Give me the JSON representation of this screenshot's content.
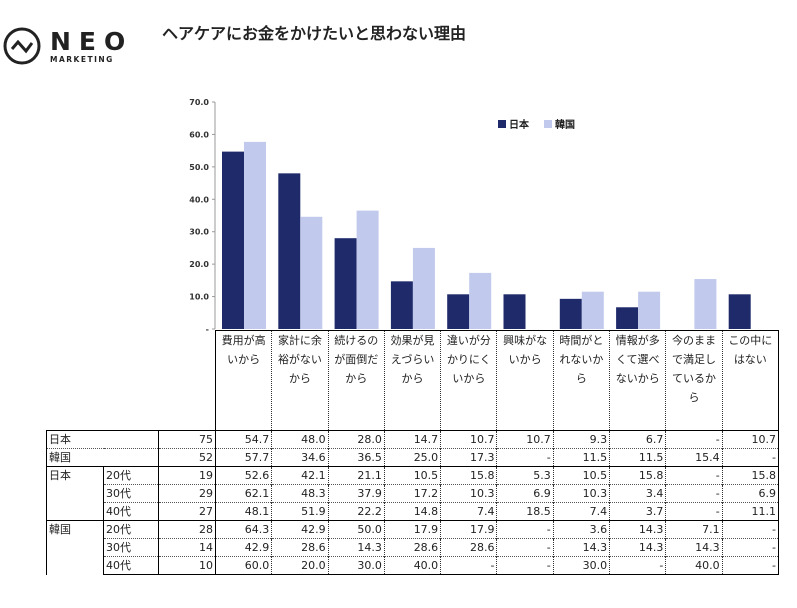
{
  "brand": {
    "name": "NEO",
    "sub": "MARKETING",
    "logo_icon": "zigzag-circle-icon"
  },
  "title": "ヘアケアにお金をかけたいと思わない理由",
  "colors": {
    "japan": "#1f2a6b",
    "korea": "#c1c9ed"
  },
  "chart_data": {
    "type": "bar",
    "categories": [
      "費用が高いから",
      "家計に余裕がないから",
      "続けるのが面倒だから",
      "効果が見えづらいから",
      "違いが分かりにくいから",
      "興味がないから",
      "時間がとれないから",
      "情報が多くて選べないから",
      "今のままで満足しているから",
      "この中にはない"
    ],
    "series": [
      {
        "name": "日本",
        "values": [
          54.7,
          48.0,
          28.0,
          14.7,
          10.7,
          10.7,
          9.3,
          6.7,
          null,
          10.7
        ]
      },
      {
        "name": "韓国",
        "values": [
          57.7,
          34.6,
          36.5,
          25.0,
          17.3,
          null,
          11.5,
          11.5,
          15.4,
          null
        ]
      }
    ],
    "ylim": [
      0,
      70
    ],
    "yticks": [
      "-",
      "10.0",
      "20.0",
      "30.0",
      "40.0",
      "50.0",
      "60.0",
      "70.0"
    ],
    "legend": "top-right",
    "grid": false
  },
  "table": {
    "rows": [
      {
        "group": "日本",
        "sub": "",
        "n": "75",
        "vals": [
          "54.7",
          "48.0",
          "28.0",
          "14.7",
          "10.7",
          "10.7",
          "9.3",
          "6.7",
          "-",
          "10.7"
        ]
      },
      {
        "group": "韓国",
        "sub": "",
        "n": "52",
        "vals": [
          "57.7",
          "34.6",
          "36.5",
          "25.0",
          "17.3",
          "-",
          "11.5",
          "11.5",
          "15.4",
          "-"
        ]
      },
      {
        "group": "日本",
        "sub": "20代",
        "n": "19",
        "vals": [
          "52.6",
          "42.1",
          "21.1",
          "10.5",
          "15.8",
          "5.3",
          "10.5",
          "15.8",
          "-",
          "15.8"
        ]
      },
      {
        "group": "",
        "sub": "30代",
        "n": "29",
        "vals": [
          "62.1",
          "48.3",
          "37.9",
          "17.2",
          "10.3",
          "6.9",
          "10.3",
          "3.4",
          "-",
          "6.9"
        ]
      },
      {
        "group": "",
        "sub": "40代",
        "n": "27",
        "vals": [
          "48.1",
          "51.9",
          "22.2",
          "14.8",
          "7.4",
          "18.5",
          "7.4",
          "3.7",
          "-",
          "11.1"
        ]
      },
      {
        "group": "韓国",
        "sub": "20代",
        "n": "28",
        "vals": [
          "64.3",
          "42.9",
          "50.0",
          "17.9",
          "17.9",
          "-",
          "3.6",
          "14.3",
          "7.1",
          "-"
        ]
      },
      {
        "group": "",
        "sub": "30代",
        "n": "14",
        "vals": [
          "42.9",
          "28.6",
          "14.3",
          "28.6",
          "28.6",
          "-",
          "14.3",
          "14.3",
          "14.3",
          "-"
        ]
      },
      {
        "group": "",
        "sub": "40代",
        "n": "10",
        "vals": [
          "60.0",
          "20.0",
          "30.0",
          "40.0",
          "-",
          "-",
          "30.0",
          "-",
          "40.0",
          "-"
        ]
      }
    ]
  }
}
